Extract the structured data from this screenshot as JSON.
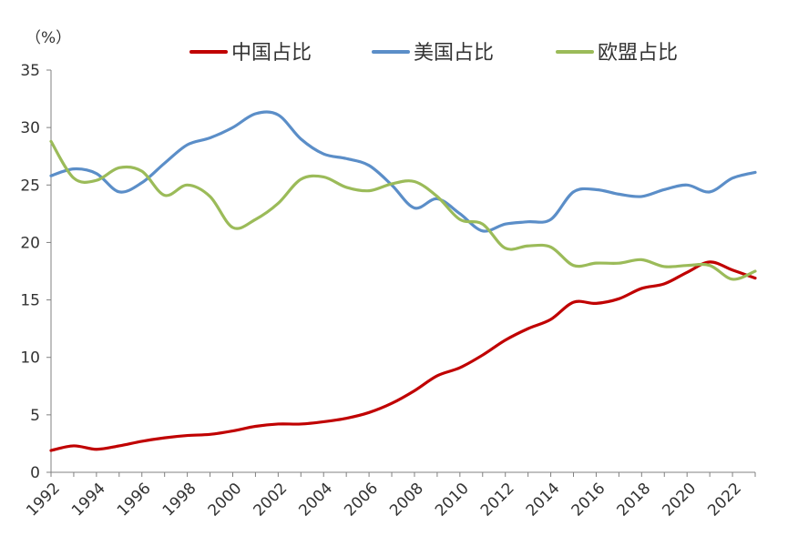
{
  "chart_data": {
    "type": "line",
    "ylabel": "（%）",
    "xlabel": "",
    "ylim": [
      0,
      35
    ],
    "xlim": [
      1992,
      2023
    ],
    "y_ticks": [
      "0",
      "5",
      "10",
      "15",
      "20",
      "25",
      "30",
      "35"
    ],
    "x_ticks": [
      "1992",
      "1994",
      "1996",
      "1998",
      "2000",
      "2002",
      "2004",
      "2006",
      "2008",
      "2010",
      "2012",
      "2014",
      "2016",
      "2018",
      "2020",
      "2022"
    ],
    "legend_position": "top",
    "grid": false,
    "x": [
      1992,
      1993,
      1994,
      1995,
      1996,
      1997,
      1998,
      1999,
      2000,
      2001,
      2002,
      2003,
      2004,
      2005,
      2006,
      2007,
      2008,
      2009,
      2010,
      2011,
      2012,
      2013,
      2014,
      2015,
      2016,
      2017,
      2018,
      2019,
      2020,
      2021,
      2022,
      2023
    ],
    "series": [
      {
        "name": "中国占比",
        "color": "#c00000",
        "values": [
          1.9,
          2.3,
          2.0,
          2.3,
          2.7,
          3.0,
          3.2,
          3.3,
          3.6,
          4.0,
          4.2,
          4.2,
          4.4,
          4.7,
          5.2,
          6.0,
          7.1,
          8.4,
          9.1,
          10.2,
          11.5,
          12.5,
          13.3,
          14.8,
          14.7,
          15.1,
          16.0,
          16.4,
          17.4,
          18.3,
          17.6,
          16.9
        ]
      },
      {
        "name": "美国占比",
        "color": "#5b8ec8",
        "values": [
          25.8,
          26.4,
          26.0,
          24.4,
          25.2,
          26.9,
          28.5,
          29.1,
          30.0,
          31.2,
          31.1,
          29.0,
          27.7,
          27.3,
          26.7,
          25.0,
          23.0,
          23.8,
          22.5,
          21.0,
          21.6,
          21.8,
          22.0,
          24.4,
          24.6,
          24.2,
          24.0,
          24.6,
          25.0,
          24.4,
          25.6,
          26.1
        ]
      },
      {
        "name": "欧盟占比",
        "color": "#9bbb59",
        "values": [
          28.8,
          25.6,
          25.4,
          26.5,
          26.2,
          24.1,
          25.0,
          24.0,
          21.3,
          22.0,
          23.4,
          25.5,
          25.7,
          24.8,
          24.5,
          25.1,
          25.3,
          24.0,
          22.0,
          21.6,
          19.5,
          19.7,
          19.6,
          18.0,
          18.2,
          18.2,
          18.5,
          17.9,
          18.0,
          18.0,
          16.8,
          17.5
        ]
      }
    ]
  }
}
